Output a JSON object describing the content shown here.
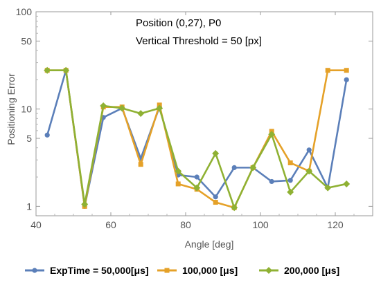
{
  "chart_data": {
    "type": "line",
    "title": "",
    "xlabel": "Angle [deg]",
    "ylabel": "Positioning Error",
    "xlim": [
      40,
      130
    ],
    "ylim": [
      0.8,
      100
    ],
    "y_scale": "log",
    "x_ticks": [
      40,
      60,
      80,
      100,
      120
    ],
    "y_ticks": [
      1,
      5,
      10,
      50,
      100
    ],
    "grid": false,
    "legend_position": "bottom",
    "annotations": [
      "Position (0,27), P0",
      "Vertical Threshold = 50 [px]"
    ],
    "x": [
      43,
      48,
      53,
      58,
      63,
      68,
      73,
      78,
      83,
      88,
      93,
      98,
      103,
      108,
      113,
      118,
      123
    ],
    "series": [
      {
        "name": "ExpTime = 50,000[μs]",
        "color": "#5b7fb9",
        "marker": "circle",
        "values": [
          5.4,
          25,
          1,
          8.2,
          10.2,
          3.1,
          10.5,
          2.1,
          2.0,
          1.25,
          2.5,
          2.5,
          1.8,
          1.85,
          3.8,
          1.55,
          20
        ]
      },
      {
        "name": "100,000 [μs]",
        "color": "#e5a128",
        "marker": "square",
        "values": [
          25,
          25,
          1,
          10.5,
          10.5,
          2.7,
          11,
          1.7,
          1.5,
          1.1,
          0.97,
          2.5,
          5.9,
          2.8,
          2.3,
          25,
          25
        ]
      },
      {
        "name": "200,000 [μs]",
        "color": "#8fb133",
        "marker": "diamond",
        "values": [
          25,
          25,
          1.05,
          10.8,
          10.2,
          9,
          10.2,
          2.3,
          1.55,
          3.5,
          0.97,
          2.5,
          5.5,
          1.4,
          2.3,
          1.55,
          1.7
        ]
      }
    ]
  }
}
